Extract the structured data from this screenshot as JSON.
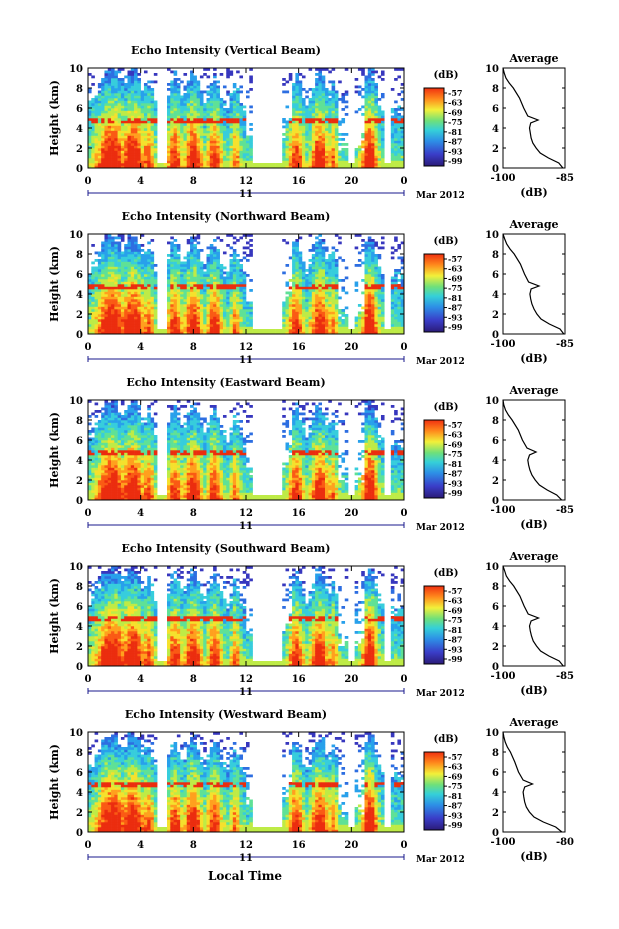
{
  "figure": {
    "footer_label": "Local Time"
  },
  "chart_data": [
    {
      "type": "heatmap",
      "title": "Echo Intensity (Vertical Beam)",
      "ylabel": "Height (km)",
      "xlim": [
        0,
        24
      ],
      "x_ticks": [
        "0",
        "4",
        "8",
        "12",
        "16",
        "20",
        "0"
      ],
      "date_label": "11",
      "month_label": "Mar 2012",
      "ylim": [
        0,
        10
      ],
      "y_ticks": [
        "0",
        "2",
        "4",
        "6",
        "8",
        "10"
      ],
      "colorbar": {
        "unit": "(dB)",
        "ticks": [
          "-57",
          "-63",
          "-69",
          "-75",
          "-81",
          "-87",
          "-93",
          "-99"
        ]
      },
      "average": {
        "title": "Average",
        "xlabel": "(dB)",
        "x_ticks": [
          "-100",
          "-85"
        ],
        "xlim": [
          -100,
          -85
        ],
        "profile_height": [
          0,
          0.5,
          1,
          1.5,
          2,
          2.5,
          3,
          3.5,
          4,
          4.5,
          4.8,
          5.2,
          6,
          7,
          8,
          8.5,
          9,
          9.5,
          10
        ],
        "profile_db": [
          -85.5,
          -86.5,
          -89,
          -91,
          -92,
          -92.8,
          -93.2,
          -93.4,
          -93.6,
          -93.3,
          -91.5,
          -94,
          -95,
          -96,
          -97.5,
          -98.5,
          -99.3,
          -99.7,
          -100
        ]
      }
    },
    {
      "type": "heatmap",
      "title": "Echo Intensity (Northward Beam)",
      "ylabel": "Height (km)",
      "xlim": [
        0,
        24
      ],
      "x_ticks": [
        "0",
        "4",
        "8",
        "12",
        "16",
        "20",
        "0"
      ],
      "date_label": "11",
      "month_label": "Mar 2012",
      "ylim": [
        0,
        10
      ],
      "y_ticks": [
        "0",
        "2",
        "4",
        "6",
        "8",
        "10"
      ],
      "colorbar": {
        "unit": "(dB)",
        "ticks": [
          "-57",
          "-63",
          "-69",
          "-75",
          "-81",
          "-87",
          "-93",
          "-99"
        ]
      },
      "average": {
        "title": "Average",
        "xlabel": "(dB)",
        "x_ticks": [
          "-100",
          "-85"
        ],
        "xlim": [
          -100,
          -85
        ],
        "profile_height": [
          0,
          0.5,
          1,
          1.5,
          2,
          2.5,
          3,
          3.5,
          4,
          4.5,
          4.8,
          5.2,
          6,
          7,
          8,
          8.5,
          9,
          9.5,
          10
        ],
        "profile_db": [
          -85.3,
          -86.2,
          -88.8,
          -90.8,
          -91.8,
          -92.5,
          -93,
          -93.3,
          -93.5,
          -93.2,
          -91.3,
          -93.8,
          -94.8,
          -95.8,
          -97.3,
          -98.3,
          -99.1,
          -99.6,
          -100
        ]
      }
    },
    {
      "type": "heatmap",
      "title": "Echo Intensity (Eastward Beam)",
      "ylabel": "Height (km)",
      "xlim": [
        0,
        24
      ],
      "x_ticks": [
        "0",
        "4",
        "8",
        "12",
        "16",
        "20",
        "0"
      ],
      "date_label": "11",
      "month_label": "Mar 2012",
      "ylim": [
        0,
        10
      ],
      "y_ticks": [
        "0",
        "2",
        "4",
        "6",
        "8",
        "10"
      ],
      "colorbar": {
        "unit": "(dB)",
        "ticks": [
          "-57",
          "-63",
          "-69",
          "-75",
          "-81",
          "-87",
          "-93",
          "-99"
        ]
      },
      "average": {
        "title": "Average",
        "xlabel": "(dB)",
        "x_ticks": [
          "-100",
          "-85"
        ],
        "xlim": [
          -100,
          -85
        ],
        "profile_height": [
          0,
          0.5,
          1,
          1.5,
          2,
          2.5,
          3,
          3.5,
          4,
          4.5,
          4.8,
          5.2,
          6,
          7,
          8,
          8.5,
          9,
          9.5,
          10
        ],
        "profile_db": [
          -85.8,
          -87,
          -89.3,
          -91.2,
          -92.2,
          -93,
          -93.5,
          -93.8,
          -94,
          -93.6,
          -92,
          -94.2,
          -95.3,
          -96.3,
          -97.8,
          -98.7,
          -99.4,
          -99.8,
          -100
        ]
      }
    },
    {
      "type": "heatmap",
      "title": "Echo Intensity (Southward Beam)",
      "ylabel": "Height (km)",
      "xlim": [
        0,
        24
      ],
      "x_ticks": [
        "0",
        "4",
        "8",
        "12",
        "16",
        "20",
        "0"
      ],
      "date_label": "11",
      "month_label": "Mar 2012",
      "ylim": [
        0,
        10
      ],
      "y_ticks": [
        "0",
        "2",
        "4",
        "6",
        "8",
        "10"
      ],
      "colorbar": {
        "unit": "(dB)",
        "ticks": [
          "-57",
          "-63",
          "-69",
          "-75",
          "-81",
          "-87",
          "-93",
          "-99"
        ]
      },
      "average": {
        "title": "Average",
        "xlabel": "(dB)",
        "x_ticks": [
          "-100",
          "-85"
        ],
        "xlim": [
          -100,
          -85
        ],
        "profile_height": [
          0,
          0.5,
          1,
          1.5,
          2,
          2.5,
          3,
          3.5,
          4,
          4.5,
          4.8,
          5.2,
          6,
          7,
          8,
          8.5,
          9,
          9.5,
          10
        ],
        "profile_db": [
          -85.4,
          -86.4,
          -88.9,
          -90.9,
          -91.9,
          -92.7,
          -93.1,
          -93.4,
          -93.6,
          -93.2,
          -91.4,
          -93.9,
          -94.9,
          -95.9,
          -97.4,
          -98.4,
          -99.2,
          -99.6,
          -100
        ]
      }
    },
    {
      "type": "heatmap",
      "title": "Echo Intensity (Westward Beam)",
      "ylabel": "Height (km)",
      "xlim": [
        0,
        24
      ],
      "x_ticks": [
        "0",
        "4",
        "8",
        "12",
        "16",
        "20",
        "0"
      ],
      "date_label": "11",
      "month_label": "Mar 2012",
      "ylim": [
        0,
        10
      ],
      "y_ticks": [
        "0",
        "2",
        "4",
        "6",
        "8",
        "10"
      ],
      "colorbar": {
        "unit": "(dB)",
        "ticks": [
          "-57",
          "-63",
          "-69",
          "-75",
          "-81",
          "-87",
          "-93",
          "-99"
        ]
      },
      "average": {
        "title": "Average",
        "xlabel": "(dB)",
        "x_ticks": [
          "-100",
          "-80"
        ],
        "xlim": [
          -100,
          -80
        ],
        "profile_height": [
          0,
          0.5,
          1,
          1.5,
          2,
          2.5,
          3,
          3.5,
          4,
          4.5,
          4.8,
          5.2,
          6,
          7,
          8,
          8.5,
          9,
          9.5,
          10
        ],
        "profile_db": [
          -81,
          -83,
          -87,
          -90,
          -91.5,
          -92.5,
          -93,
          -93.3,
          -93.5,
          -93,
          -90.5,
          -93.5,
          -95,
          -96.2,
          -97.6,
          -98.6,
          -99.3,
          -99.7,
          -100
        ]
      }
    }
  ]
}
